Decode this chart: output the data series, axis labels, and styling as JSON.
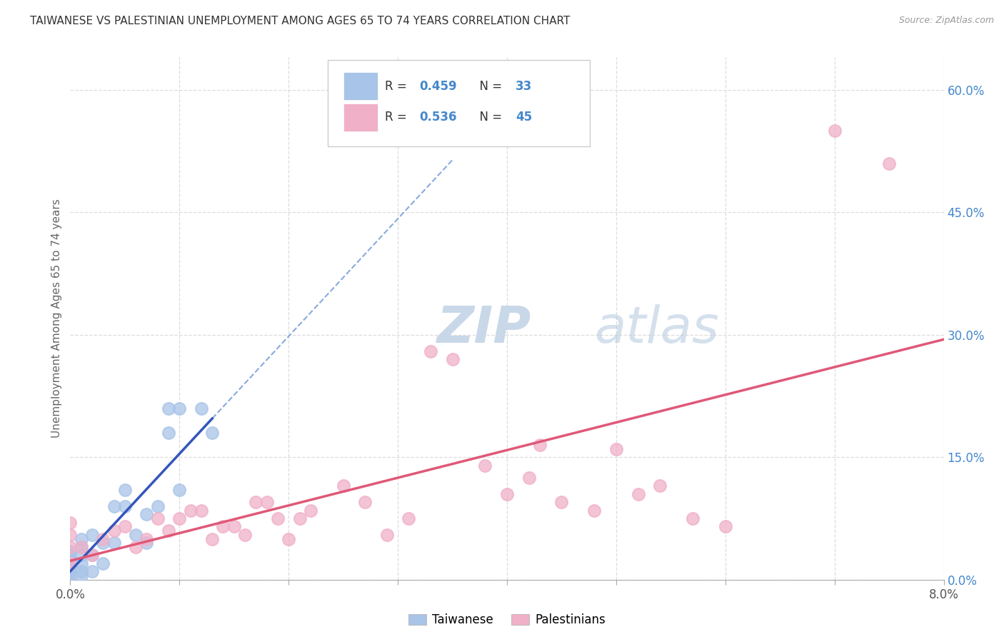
{
  "title": "TAIWANESE VS PALESTINIAN UNEMPLOYMENT AMONG AGES 65 TO 74 YEARS CORRELATION CHART",
  "source": "Source: ZipAtlas.com",
  "ylabel": "Unemployment Among Ages 65 to 74 years",
  "xlim": [
    0.0,
    0.08
  ],
  "ylim": [
    0.0,
    0.64
  ],
  "xticks": [
    0.0,
    0.01,
    0.02,
    0.03,
    0.04,
    0.05,
    0.06,
    0.07,
    0.08
  ],
  "xtick_labels": [
    "0.0%",
    "",
    "",
    "",
    "",
    "",
    "",
    "",
    "8.0%"
  ],
  "yticks_right": [
    0.0,
    0.15,
    0.3,
    0.45,
    0.6
  ],
  "ytick_labels_right": [
    "0.0%",
    "15.0%",
    "30.0%",
    "45.0%",
    "60.0%"
  ],
  "legend_R_taiwanese": "0.459",
  "legend_N_taiwanese": "33",
  "legend_R_palestinian": "0.536",
  "legend_N_palestinian": "45",
  "taiwanese_color": "#a8c4e8",
  "palestinian_color": "#f0b0c8",
  "taiwanese_line_color": "#3355bb",
  "taiwanese_dash_color": "#88aadd",
  "palestinian_line_color": "#e05878",
  "taiwanese_scatter_x": [
    0.0,
    0.0,
    0.0,
    0.0,
    0.0,
    0.0,
    0.0,
    0.0,
    0.001,
    0.001,
    0.001,
    0.001,
    0.001,
    0.001,
    0.002,
    0.002,
    0.002,
    0.003,
    0.003,
    0.004,
    0.004,
    0.005,
    0.005,
    0.006,
    0.007,
    0.007,
    0.008,
    0.009,
    0.009,
    0.01,
    0.01,
    0.012,
    0.013
  ],
  "taiwanese_scatter_y": [
    0.005,
    0.008,
    0.01,
    0.015,
    0.02,
    0.025,
    0.03,
    0.035,
    0.005,
    0.01,
    0.02,
    0.03,
    0.04,
    0.05,
    0.01,
    0.03,
    0.055,
    0.02,
    0.045,
    0.045,
    0.09,
    0.09,
    0.11,
    0.055,
    0.045,
    0.08,
    0.09,
    0.18,
    0.21,
    0.11,
    0.21,
    0.21,
    0.18
  ],
  "palestinian_scatter_x": [
    0.0,
    0.0,
    0.0,
    0.0,
    0.001,
    0.002,
    0.003,
    0.004,
    0.005,
    0.006,
    0.007,
    0.008,
    0.009,
    0.01,
    0.011,
    0.012,
    0.013,
    0.014,
    0.015,
    0.016,
    0.017,
    0.018,
    0.019,
    0.02,
    0.021,
    0.022,
    0.025,
    0.027,
    0.029,
    0.031,
    0.033,
    0.035,
    0.038,
    0.04,
    0.042,
    0.043,
    0.045,
    0.048,
    0.05,
    0.052,
    0.054,
    0.057,
    0.06,
    0.07,
    0.075
  ],
  "palestinian_scatter_y": [
    0.02,
    0.04,
    0.055,
    0.07,
    0.04,
    0.03,
    0.05,
    0.06,
    0.065,
    0.04,
    0.05,
    0.075,
    0.06,
    0.075,
    0.085,
    0.085,
    0.05,
    0.065,
    0.065,
    0.055,
    0.095,
    0.095,
    0.075,
    0.05,
    0.075,
    0.085,
    0.115,
    0.095,
    0.055,
    0.075,
    0.28,
    0.27,
    0.14,
    0.105,
    0.125,
    0.165,
    0.095,
    0.085,
    0.16,
    0.105,
    0.115,
    0.075,
    0.065,
    0.55,
    0.51
  ],
  "watermark_zip": "ZIP",
  "watermark_atlas": "atlas",
  "background_color": "#ffffff",
  "grid_color": "#dddddd"
}
